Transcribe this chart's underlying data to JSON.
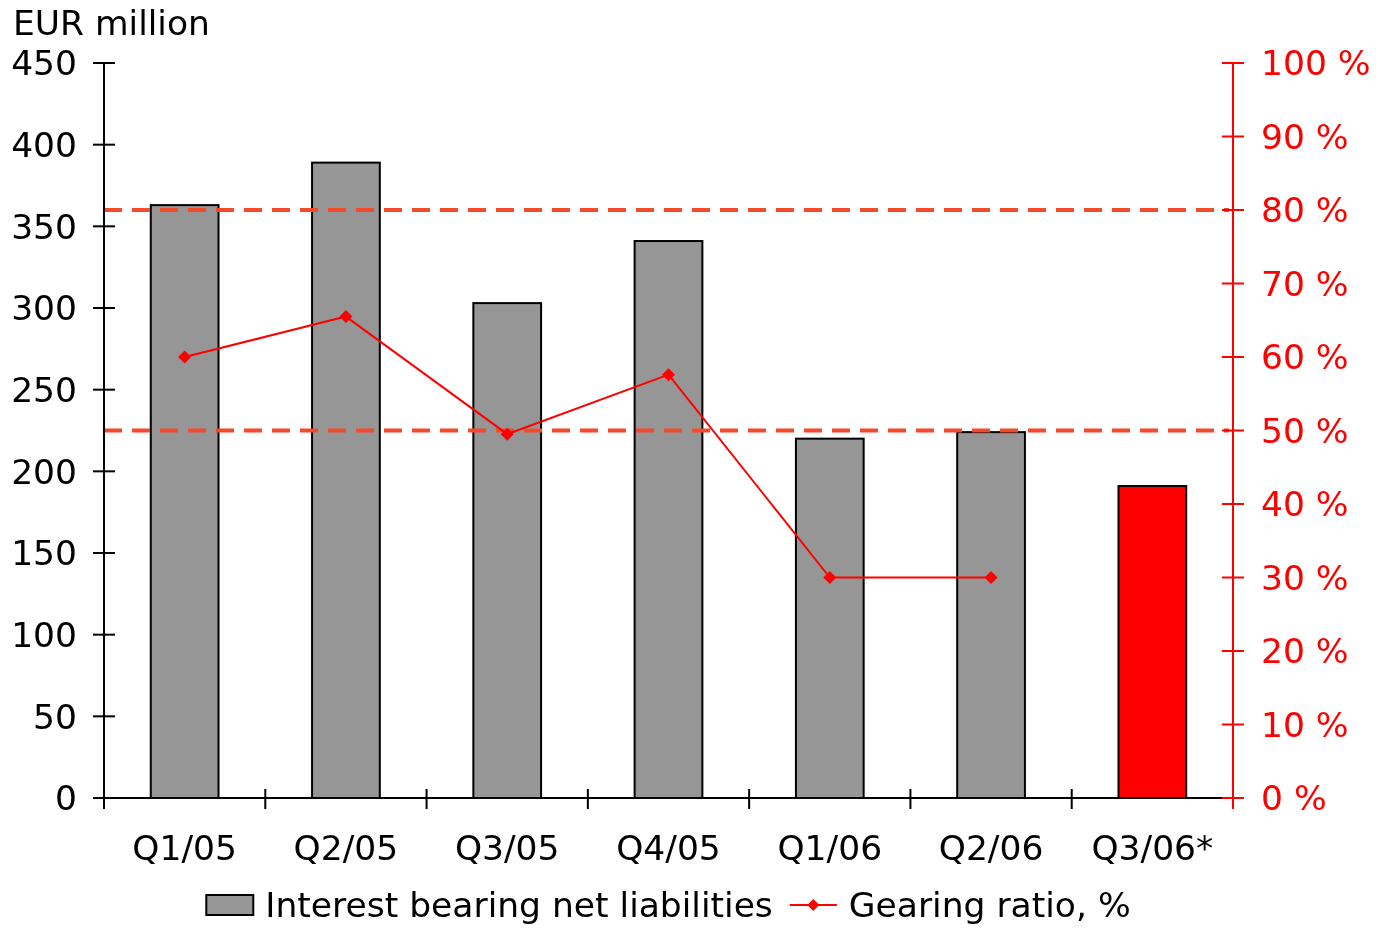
{
  "chart_data": {
    "type": "bar",
    "ylabel": "EUR million",
    "categories": [
      "Q1/05",
      "Q2/05",
      "Q3/05",
      "Q4/05",
      "Q1/06",
      "Q2/06",
      "Q3/06*"
    ],
    "series": [
      {
        "name": "Interest bearing net liabilities",
        "color": "#969696",
        "colors": [
          "#969696",
          "#969696",
          "#969696",
          "#969696",
          "#969696",
          "#969696",
          "#ff0000"
        ],
        "values": [
          363,
          389,
          303,
          341,
          220,
          224,
          191
        ]
      },
      {
        "name": "Gearing ratio, %",
        "type": "line",
        "axis": "y2",
        "color": "#ff0000",
        "marker": "diamond",
        "values": [
          60,
          65.5,
          49.5,
          57.6,
          30,
          30,
          null
        ]
      }
    ],
    "ylim": [
      0,
      450
    ],
    "yticks": [
      0,
      50,
      100,
      150,
      200,
      250,
      300,
      350,
      400,
      450
    ],
    "y2lim": [
      0,
      100
    ],
    "y2ticks": [
      {
        "value": 0,
        "label": "0 %"
      },
      {
        "value": 10,
        "label": "10 %"
      },
      {
        "value": 20,
        "label": "20 %"
      },
      {
        "value": 30,
        "label": "30 %"
      },
      {
        "value": 40,
        "label": "40 %"
      },
      {
        "value": 50,
        "label": "50 %"
      },
      {
        "value": 60,
        "label": "60 %"
      },
      {
        "value": 70,
        "label": "70 %"
      },
      {
        "value": 80,
        "label": "80 %"
      },
      {
        "value": 90,
        "label": "90 %"
      },
      {
        "value": 100,
        "label": "100 %"
      }
    ],
    "ref_lines": [
      {
        "axis": "y2",
        "value": 80,
        "color": "#f5492c",
        "line_style": "dashed"
      },
      {
        "axis": "y2",
        "value": 50,
        "color": "#f5492c",
        "line_style": "dashed"
      }
    ],
    "legend": "bottom"
  }
}
